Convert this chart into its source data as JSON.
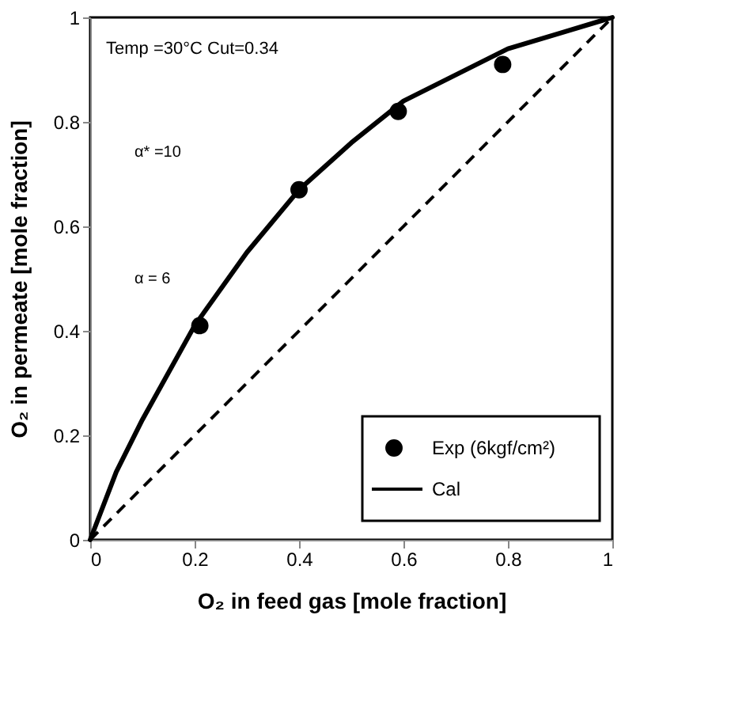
{
  "chart_data": {
    "type": "line",
    "xlabel": "O₂ in feed gas [mole fraction]",
    "ylabel": "O₂ in permeate [mole fraction]",
    "xlim": [
      0,
      1
    ],
    "ylim": [
      0,
      1
    ],
    "xticks": [
      0,
      0.2,
      0.4,
      0.6,
      0.8,
      1
    ],
    "yticks": [
      0,
      0.2,
      0.4,
      0.6,
      0.8,
      1
    ],
    "grid": false,
    "legend": "bottom right",
    "series": [
      {
        "name": "Exp (6kgf/cm²)",
        "type": "scatter",
        "marker": "circle",
        "color": "#000000",
        "x": [
          0.21,
          0.4,
          0.59,
          0.79
        ],
        "values": [
          0.41,
          0.67,
          0.82,
          0.91
        ]
      },
      {
        "name": "Cal",
        "line_style": "solid",
        "color": "#000000",
        "x": [
          0,
          0.05,
          0.1,
          0.2,
          0.3,
          0.4,
          0.5,
          0.6,
          0.7,
          0.8,
          0.9,
          1
        ],
        "values": [
          0,
          0.13,
          0.23,
          0.41,
          0.55,
          0.67,
          0.76,
          0.84,
          0.89,
          0.94,
          0.97,
          1
        ]
      },
      {
        "line_style": "dashed",
        "color": "#000000",
        "x": [
          0,
          1
        ],
        "values": [
          0,
          1
        ]
      }
    ],
    "annotations": [
      "Temp =30°C Cut=0.34",
      "α* =10",
      "α = 6"
    ]
  }
}
